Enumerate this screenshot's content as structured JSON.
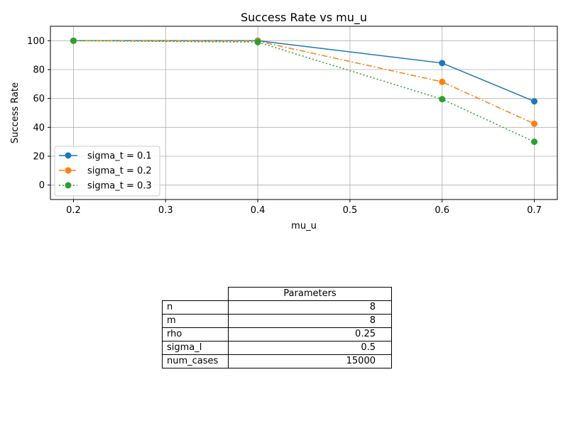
{
  "chart_data": {
    "type": "line",
    "title": "Success Rate vs mu_u",
    "xlabel": "mu_u",
    "ylabel": "Success Rate",
    "x": [
      0.2,
      0.4,
      0.6,
      0.7
    ],
    "xticks": [
      "0.2",
      "0.3",
      "0.4",
      "0.5",
      "0.6",
      "0.7"
    ],
    "yticks": [
      "0",
      "20",
      "40",
      "60",
      "80",
      "100"
    ],
    "xlim": [
      0.175,
      0.725
    ],
    "ylim": [
      -10,
      110
    ],
    "grid": true,
    "legend_position": "lower-left",
    "series": [
      {
        "name": "sigma_t = 0.1",
        "values": [
          100,
          100,
          84.5,
          58
        ],
        "color": "#1f77b4",
        "dash": "solid"
      },
      {
        "name": "sigma_t = 0.2",
        "values": [
          100,
          99.7,
          71.5,
          42.5
        ],
        "color": "#ff7f0e",
        "dash": "dashdot"
      },
      {
        "name": "sigma_t = 0.3",
        "values": [
          100,
          99,
          59.5,
          30
        ],
        "color": "#2ca02c",
        "dash": "dotted"
      }
    ]
  },
  "table": {
    "header": "Parameters",
    "rows": [
      {
        "key": "n",
        "value": "8"
      },
      {
        "key": "m",
        "value": "8"
      },
      {
        "key": "rho",
        "value": "0.25"
      },
      {
        "key": "sigma_l",
        "value": "0.5"
      },
      {
        "key": "num_cases",
        "value": "15000"
      }
    ]
  }
}
